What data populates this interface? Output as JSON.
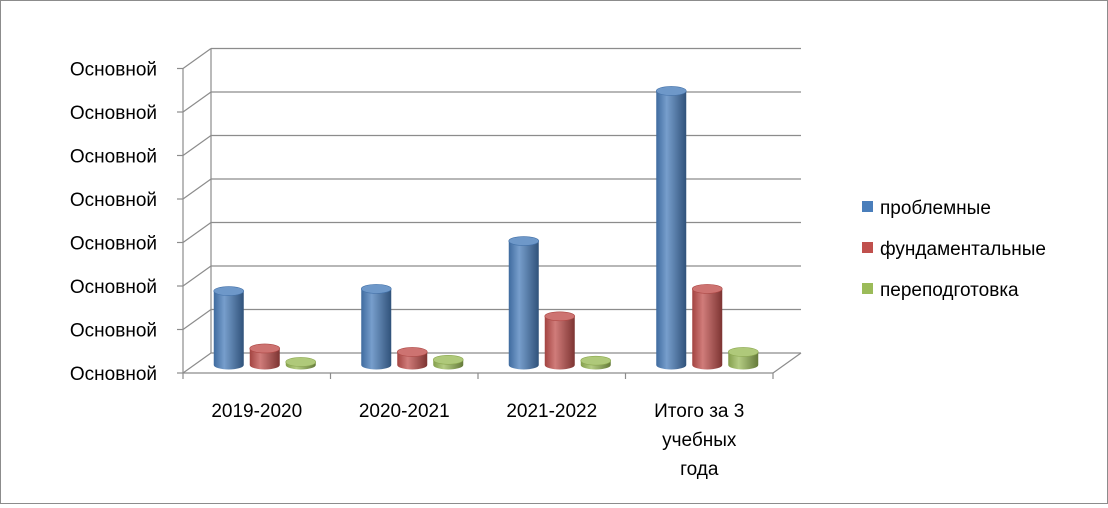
{
  "chart_data": {
    "type": "bar",
    "title": "",
    "xlabel": "",
    "ylabel": "",
    "categories": [
      "2019-2020",
      "2020-2021",
      "2021-2022",
      "Итого за 3 учебных года"
    ],
    "category_lines": [
      [
        "2019-2020"
      ],
      [
        "2020-2021"
      ],
      [
        "2021-2022"
      ],
      [
        "Итого за 3",
        "учебных",
        "года"
      ]
    ],
    "y_tick_labels": [
      "Основной",
      "Основной",
      "Основной",
      "Основной",
      "Основной",
      "Основной",
      "Основной",
      "Основной"
    ],
    "ylim": [
      0,
      7
    ],
    "series": [
      {
        "name": "проблемные",
        "values": [
          1.7,
          1.75,
          2.85,
          6.3
        ],
        "color": "#4a7ebb"
      },
      {
        "name": "фундаментальные",
        "values": [
          0.38,
          0.3,
          1.12,
          1.75
        ],
        "color": "#c0504d"
      },
      {
        "name": "переподготовка",
        "values": [
          0.07,
          0.12,
          0.1,
          0.3
        ],
        "color": "#9bbb59"
      }
    ],
    "grid": true,
    "legend_position": "right",
    "style": "3d-cylinder"
  }
}
